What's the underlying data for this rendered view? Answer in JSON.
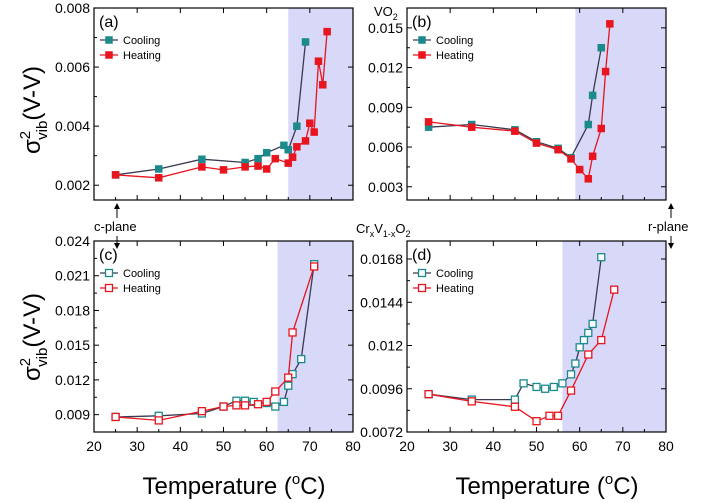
{
  "figure": {
    "xlabel": "Temperature (",
    "xlabel_sup": "o",
    "xlabel_tail": "C)",
    "ylabel_sigma": "σ",
    "ylabel_sup": "2",
    "ylabel_sub": "vib",
    "ylabel_tail": "(V-V)",
    "top_material": "VO",
    "top_material_sub": "2",
    "mid_material": "Cr",
    "mid_material_sub1": "x",
    "mid_material_mid": "V",
    "mid_material_sub2": "1-x",
    "mid_material_tail": "O",
    "mid_material_sub3": "2",
    "left_plane": "c-plane",
    "right_plane": "r-plane",
    "colors": {
      "cooling_vo2": "#1a8a8c",
      "heating_vo2": "#e8141e",
      "cooling_line": "#3a3a50",
      "heating_line": "#e8141e",
      "shade": "#d8d8f8"
    }
  },
  "chart_data": [
    {
      "type": "line",
      "panel": "(a)",
      "xlim": [
        20,
        80
      ],
      "ylim": [
        0.0015,
        0.008
      ],
      "yticks": [
        "0.002",
        "0.004",
        "0.006",
        "0.008"
      ],
      "ytick_values": [
        0.002,
        0.004,
        0.006,
        0.008
      ],
      "xticks": [
        20,
        30,
        40,
        50,
        60,
        70,
        80
      ],
      "shade_from": 65,
      "marker": "filled",
      "series": [
        {
          "name": "Cooling",
          "x": [
            25,
            35,
            45,
            55,
            58,
            60,
            64,
            65,
            67,
            69
          ],
          "y": [
            0.00235,
            0.00255,
            0.00288,
            0.00277,
            0.0029,
            0.0031,
            0.00335,
            0.0032,
            0.004,
            0.00685
          ]
        },
        {
          "name": "Heating",
          "x": [
            25,
            35,
            45,
            50,
            55,
            58,
            60,
            62,
            65,
            66,
            67,
            69,
            70,
            71,
            72,
            73,
            74
          ],
          "y": [
            0.00235,
            0.00225,
            0.00262,
            0.00252,
            0.00262,
            0.00265,
            0.00255,
            0.0029,
            0.00275,
            0.00295,
            0.0033,
            0.0035,
            0.0041,
            0.0038,
            0.0062,
            0.0054,
            0.0072
          ]
        }
      ]
    },
    {
      "type": "line",
      "panel": "(b)",
      "xlim": [
        20,
        80
      ],
      "ylim": [
        0.002,
        0.0165
      ],
      "yticks": [
        "0.003",
        "0.006",
        "0.009",
        "0.012",
        "0.015"
      ],
      "ytick_values": [
        0.003,
        0.006,
        0.009,
        0.012,
        0.015
      ],
      "xticks": [
        20,
        30,
        40,
        50,
        60,
        70,
        80
      ],
      "shade_from": 59,
      "marker": "filled",
      "series": [
        {
          "name": "Cooling",
          "x": [
            25,
            35,
            45,
            50,
            55,
            58,
            62,
            63,
            65
          ],
          "y": [
            0.0075,
            0.0077,
            0.0073,
            0.0064,
            0.0059,
            0.0052,
            0.0077,
            0.0099,
            0.0135
          ]
        },
        {
          "name": "Heating",
          "x": [
            25,
            35,
            45,
            50,
            55,
            58,
            60,
            62,
            63,
            65,
            66,
            67
          ],
          "y": [
            0.0079,
            0.0075,
            0.0072,
            0.0063,
            0.0058,
            0.0051,
            0.0043,
            0.0036,
            0.0053,
            0.0074,
            0.0117,
            0.0153
          ]
        }
      ]
    },
    {
      "type": "line",
      "panel": "(c)",
      "xlim": [
        20,
        80
      ],
      "ylim": [
        0.0075,
        0.024
      ],
      "yticks": [
        "0.009",
        "0.012",
        "0.015",
        "0.018",
        "0.021",
        "0.024"
      ],
      "ytick_values": [
        0.009,
        0.012,
        0.015,
        0.018,
        0.021,
        0.024
      ],
      "xticks": [
        20,
        30,
        40,
        50,
        60,
        70,
        80
      ],
      "shade_from": 62.5,
      "marker": "open",
      "series": [
        {
          "name": "Cooling",
          "x": [
            25,
            35,
            45,
            50,
            53,
            55,
            57,
            60,
            62,
            64,
            65,
            66,
            68,
            71
          ],
          "y": [
            0.0088,
            0.0089,
            0.0091,
            0.0097,
            0.0102,
            0.0102,
            0.0101,
            0.01,
            0.0097,
            0.0101,
            0.0115,
            0.0125,
            0.0138,
            0.022
          ]
        },
        {
          "name": "Heating",
          "x": [
            25,
            35,
            45,
            50,
            53,
            55,
            58,
            60,
            62,
            65,
            66,
            71
          ],
          "y": [
            0.0088,
            0.0085,
            0.0093,
            0.0097,
            0.0098,
            0.0098,
            0.0099,
            0.0101,
            0.011,
            0.0122,
            0.0161,
            0.0218
          ]
        }
      ]
    },
    {
      "type": "line",
      "panel": "(d)",
      "xlim": [
        20,
        80
      ],
      "ylim": [
        0.0072,
        0.0178
      ],
      "yticks": [
        "0.0072",
        "0.0096",
        "0.012",
        "0.0144",
        "0.0168"
      ],
      "ytick_values": [
        0.0072,
        0.0096,
        0.012,
        0.0144,
        0.0168
      ],
      "xticks": [
        20,
        30,
        40,
        50,
        60,
        70,
        80
      ],
      "shade_from": 56,
      "marker": "open",
      "series": [
        {
          "name": "Cooling",
          "x": [
            25,
            35,
            45,
            47,
            50,
            52,
            54,
            56,
            58,
            59,
            60,
            61,
            62,
            63,
            65
          ],
          "y": [
            0.0093,
            0.009,
            0.009,
            0.0099,
            0.0097,
            0.0096,
            0.0097,
            0.0099,
            0.0104,
            0.011,
            0.0119,
            0.0123,
            0.0127,
            0.0132,
            0.0169
          ]
        },
        {
          "name": "Heating",
          "x": [
            25,
            35,
            45,
            50,
            53,
            55,
            58,
            62,
            65,
            68
          ],
          "y": [
            0.0093,
            0.0089,
            0.0086,
            0.0078,
            0.0081,
            0.0081,
            0.0095,
            0.0115,
            0.0123,
            0.0151
          ]
        }
      ]
    }
  ]
}
